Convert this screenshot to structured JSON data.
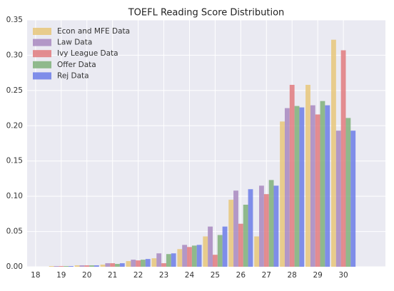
{
  "chart_data": {
    "type": "bar",
    "title": "TOEFL Reading Score Distribution",
    "x": [
      18,
      19,
      20,
      21,
      22,
      23,
      24,
      25,
      26,
      27,
      28,
      29,
      30
    ],
    "series": [
      {
        "name": "Econ and MFE Data",
        "color": "#e8c77a",
        "values": [
          0,
          0.001,
          0.002,
          0.003,
          0.008,
          0.012,
          0.025,
          0.043,
          0.095,
          0.043,
          0.206,
          0.258,
          0.322
        ]
      },
      {
        "name": "Law Data",
        "color": "#a888c0",
        "values": [
          0,
          0.001,
          0.002,
          0.005,
          0.01,
          0.019,
          0.031,
          0.057,
          0.108,
          0.115,
          0.225,
          0.229,
          0.193
        ]
      },
      {
        "name": "Ivy League Data",
        "color": "#e07a7e",
        "values": [
          0,
          0.001,
          0.002,
          0.005,
          0.009,
          0.005,
          0.028,
          0.017,
          0.061,
          0.103,
          0.258,
          0.216,
          0.307
        ]
      },
      {
        "name": "Offer Data",
        "color": "#7fb07a",
        "values": [
          0,
          0.001,
          0.002,
          0.004,
          0.01,
          0.018,
          0.03,
          0.045,
          0.088,
          0.123,
          0.228,
          0.235,
          0.211
        ]
      },
      {
        "name": "Rej Data",
        "color": "#6c7de8",
        "values": [
          0,
          0.001,
          0.002,
          0.005,
          0.011,
          0.019,
          0.031,
          0.057,
          0.11,
          0.115,
          0.226,
          0.229,
          0.193
        ]
      }
    ],
    "xlim": [
      17.67,
      31.64
    ],
    "xticks": [
      18,
      19,
      20,
      21,
      22,
      23,
      24,
      25,
      26,
      27,
      28,
      29,
      30
    ],
    "ylim": [
      0,
      0.35
    ],
    "yticks": [
      {
        "value": 0,
        "label": "0.00"
      },
      0.05,
      {
        "value": 0.1,
        "label": "0.10"
      },
      0.15,
      {
        "value": 0.2,
        "label": "0.20"
      },
      0.25,
      {
        "value": 0.3,
        "label": "0.30"
      },
      0.35
    ],
    "grid": true,
    "legend": "upper left"
  }
}
